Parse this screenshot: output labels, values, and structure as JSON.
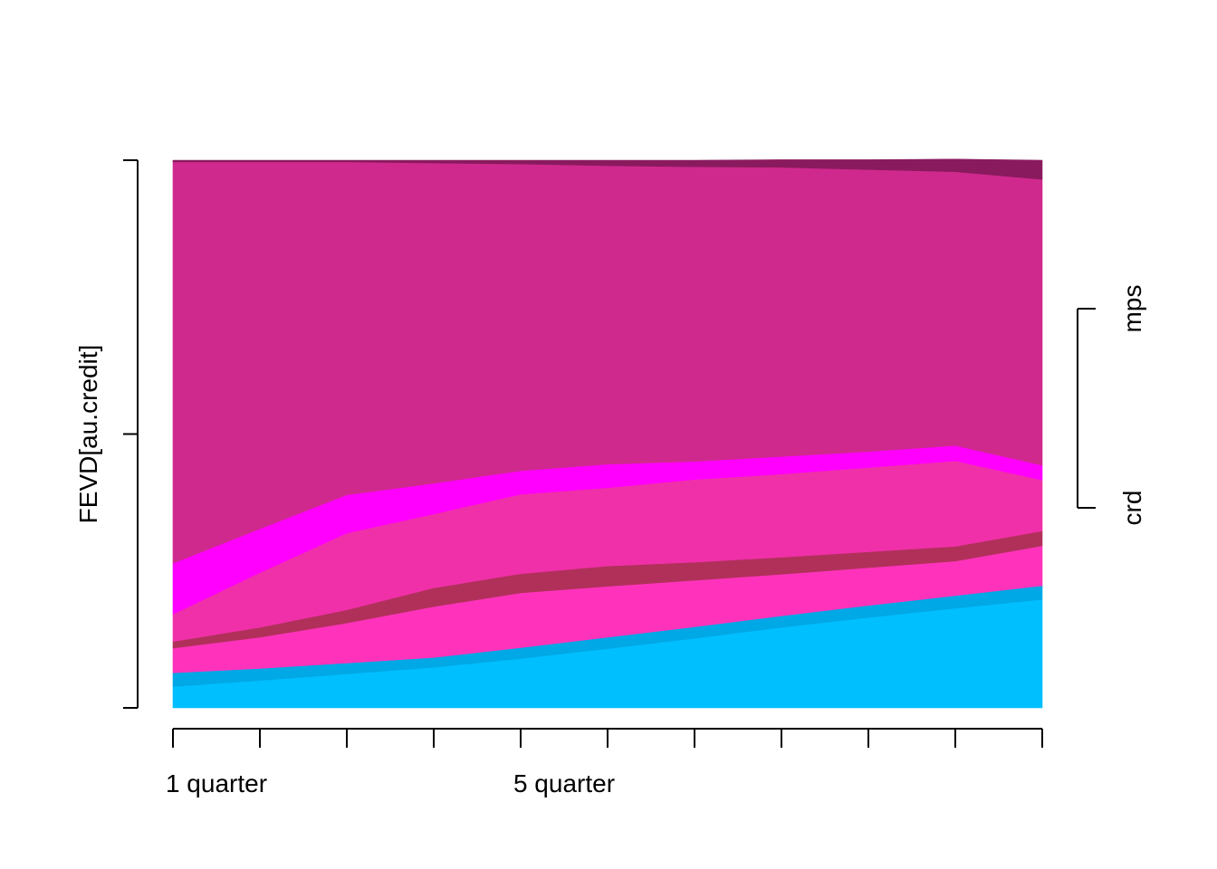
{
  "chart_data": {
    "type": "area",
    "stacked": true,
    "title": "",
    "ylabel": "FEVD[au.credit]",
    "xlabel": "",
    "x": [
      1,
      2,
      3,
      4,
      5,
      6,
      7,
      8,
      9,
      10,
      11
    ],
    "xtick_labels": [
      {
        "x": 1.5,
        "label": "1 quarter"
      },
      {
        "x": 5.5,
        "label": "5 quarter"
      }
    ],
    "ylim": [
      0,
      1
    ],
    "yticks": [
      0,
      0.5,
      1
    ],
    "series": [
      {
        "color": "#00BFFF",
        "values": [
          0.039,
          0.05,
          0.062,
          0.074,
          0.09,
          0.108,
          0.127,
          0.147,
          0.165,
          0.182,
          0.198
        ]
      },
      {
        "color": "#00A8E6",
        "values": [
          0.025,
          0.022,
          0.02,
          0.018,
          0.02,
          0.021,
          0.021,
          0.021,
          0.022,
          0.023,
          0.025
        ]
      },
      {
        "color": "#FF33BB",
        "values": [
          0.045,
          0.057,
          0.073,
          0.093,
          0.1,
          0.093,
          0.085,
          0.076,
          0.069,
          0.063,
          0.073
        ]
      },
      {
        "color": "#B0305A",
        "values": [
          0.012,
          0.018,
          0.024,
          0.034,
          0.035,
          0.037,
          0.033,
          0.031,
          0.029,
          0.027,
          0.027
        ]
      },
      {
        "color": "#F030A8",
        "values": [
          0.05,
          0.1,
          0.14,
          0.135,
          0.145,
          0.143,
          0.151,
          0.152,
          0.154,
          0.156,
          0.093
        ]
      },
      {
        "color": "#FF00FF",
        "values": [
          0.093,
          0.08,
          0.07,
          0.056,
          0.043,
          0.043,
          0.033,
          0.032,
          0.029,
          0.028,
          0.027
        ]
      },
      {
        "color": "#CF298E",
        "values": [
          0.733,
          0.67,
          0.608,
          0.585,
          0.56,
          0.545,
          0.538,
          0.528,
          0.515,
          0.5,
          0.522
        ]
      },
      {
        "color": "#8A1A5E",
        "values": [
          0.003,
          0.003,
          0.003,
          0.005,
          0.007,
          0.01,
          0.012,
          0.014,
          0.018,
          0.023,
          0.035
        ]
      }
    ],
    "group_labels": [
      {
        "label": "crd",
        "from": 0.368,
        "to": 0.368
      },
      {
        "label": "mps",
        "from": 0.73,
        "to": 0.73
      }
    ],
    "grid": false,
    "legend": "none"
  }
}
